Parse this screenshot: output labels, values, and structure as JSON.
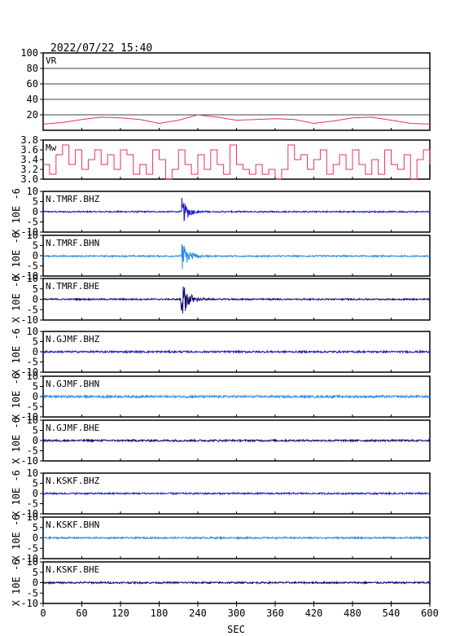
{
  "header": {
    "timestamp": "2022/07/22  15:40"
  },
  "chart_data": {
    "type": "line",
    "title": "2022/07/22  15:40",
    "xlabel": "SEC",
    "xlim": [
      0,
      600
    ],
    "x_ticks": [
      0,
      60,
      120,
      180,
      240,
      300,
      360,
      420,
      480,
      540,
      600
    ],
    "panels": [
      {
        "id": "vr",
        "label": "VR",
        "ylim": [
          0,
          100
        ],
        "y_ticks": [
          100,
          80,
          60,
          40,
          20
        ],
        "gridlines": [
          80,
          60,
          40,
          20
        ],
        "color": "#e8325a",
        "series": {
          "name": "VR",
          "x": [
            0,
            30,
            60,
            90,
            120,
            150,
            180,
            210,
            240,
            270,
            300,
            330,
            360,
            390,
            420,
            450,
            480,
            510,
            540,
            570,
            600
          ],
          "values": [
            8,
            10,
            14,
            17,
            16,
            14,
            9,
            13,
            20,
            17,
            13,
            14,
            15,
            14,
            9,
            12,
            16,
            17,
            13,
            9,
            8
          ]
        }
      },
      {
        "id": "mw",
        "label": "Mw",
        "ylim": [
          3.0,
          3.8
        ],
        "y_ticks": [
          "3.8",
          "3.6",
          "3.4",
          "3.2",
          "3.0"
        ],
        "gridlines": [],
        "color": "#e8325a",
        "series": {
          "name": "Mw",
          "x": [
            0,
            10,
            20,
            30,
            40,
            50,
            60,
            70,
            80,
            90,
            100,
            110,
            120,
            130,
            140,
            150,
            160,
            170,
            180,
            190,
            200,
            210,
            220,
            230,
            240,
            250,
            260,
            270,
            280,
            290,
            300,
            310,
            320,
            330,
            340,
            350,
            360,
            370,
            380,
            390,
            400,
            410,
            420,
            430,
            440,
            450,
            460,
            470,
            480,
            490,
            500,
            510,
            520,
            530,
            540,
            550,
            560,
            570,
            580,
            590,
            600
          ],
          "values": [
            3.3,
            3.1,
            3.5,
            3.7,
            3.3,
            3.6,
            3.2,
            3.4,
            3.6,
            3.3,
            3.5,
            3.2,
            3.6,
            3.5,
            3.1,
            3.3,
            3.1,
            3.6,
            3.4,
            3.0,
            3.2,
            3.6,
            3.3,
            3.1,
            3.5,
            3.2,
            3.6,
            3.3,
            3.1,
            3.7,
            3.3,
            3.2,
            3.1,
            3.3,
            3.1,
            3.2,
            3.0,
            3.2,
            3.7,
            3.4,
            3.5,
            3.2,
            3.4,
            3.6,
            3.1,
            3.3,
            3.5,
            3.2,
            3.6,
            3.3,
            3.1,
            3.4,
            3.1,
            3.6,
            3.3,
            3.2,
            3.5,
            3.0,
            3.4,
            3.6,
            3.3
          ]
        }
      },
      {
        "id": "tmrf-bhz",
        "label": "N.TMRF.BHZ",
        "ylabel": "X 10E -6",
        "ylim": [
          -10,
          10
        ],
        "y_ticks": [
          "10",
          "5",
          "0",
          "-5",
          "-10"
        ],
        "color": "#1c1cc8",
        "baseline": 0,
        "noise": 0.35,
        "event": {
          "t": 215,
          "amp": 7,
          "decay": 10
        }
      },
      {
        "id": "tmrf-bhn",
        "label": "N.TMRF.BHN",
        "ylabel": "X 10E -6",
        "ylim": [
          -10,
          10
        ],
        "y_ticks": [
          "10",
          "5",
          "0",
          "-5",
          "-10"
        ],
        "color": "#2a8ce8",
        "baseline": -0.2,
        "noise": 0.35,
        "event": {
          "t": 215,
          "amp": 8,
          "decay": 11
        }
      },
      {
        "id": "tmrf-bhe",
        "label": "N.TMRF.BHE",
        "ylabel": "X 10E -6",
        "ylim": [
          -10,
          10
        ],
        "y_ticks": [
          "10",
          "5",
          "0",
          "-5",
          "-10"
        ],
        "color": "#0d0d6e",
        "baseline": 0,
        "noise": 0.35,
        "event": {
          "t": 214,
          "amp": 10,
          "decay": 11
        }
      },
      {
        "id": "gjmf-bhz",
        "label": "N.GJMF.BHZ",
        "ylabel": "X 10E -6",
        "ylim": [
          -10,
          10
        ],
        "y_ticks": [
          "10",
          "5",
          "0",
          "-5",
          "-10"
        ],
        "color": "#1c1cc8",
        "baseline": 0,
        "noise": 0.45,
        "event": null
      },
      {
        "id": "gjmf-bhn",
        "label": "N.GJMF.BHN",
        "ylabel": "X 10E -6",
        "ylim": [
          -10,
          10
        ],
        "y_ticks": [
          "10",
          "5",
          "0",
          "-5",
          "-10"
        ],
        "color": "#2a8ce8",
        "baseline": 0,
        "noise": 0.55,
        "event": null
      },
      {
        "id": "gjmf-bhe",
        "label": "N.GJMF.BHE",
        "ylabel": "X 10E -6",
        "ylim": [
          -10,
          10
        ],
        "y_ticks": [
          "10",
          "5",
          "0",
          "-5",
          "-10"
        ],
        "color": "#0d0d6e",
        "baseline": 0,
        "noise": 0.45,
        "event": null
      },
      {
        "id": "kskf-bhz",
        "label": "N.KSKF.BHZ",
        "ylabel": "X 10E -6",
        "ylim": [
          -10,
          10
        ],
        "y_ticks": [
          "10",
          "5",
          "0",
          "-5",
          "-10"
        ],
        "color": "#1c1cc8",
        "baseline": 0,
        "noise": 0.4,
        "event": null
      },
      {
        "id": "kskf-bhn",
        "label": "N.KSKF.BHN",
        "ylabel": "X 10E -6",
        "ylim": [
          -10,
          10
        ],
        "y_ticks": [
          "10",
          "5",
          "0",
          "-5",
          "-10"
        ],
        "color": "#2a8ce8",
        "baseline": 0,
        "noise": 0.4,
        "event": null
      },
      {
        "id": "kskf-bhe",
        "label": "N.KSKF.BHE",
        "ylabel": "X 10E -6",
        "ylim": [
          -10,
          10
        ],
        "y_ticks": [
          "10",
          "5",
          "0",
          "-5",
          "-10"
        ],
        "color": "#0d0d6e",
        "baseline": 0,
        "noise": 0.4,
        "event": null
      }
    ]
  }
}
